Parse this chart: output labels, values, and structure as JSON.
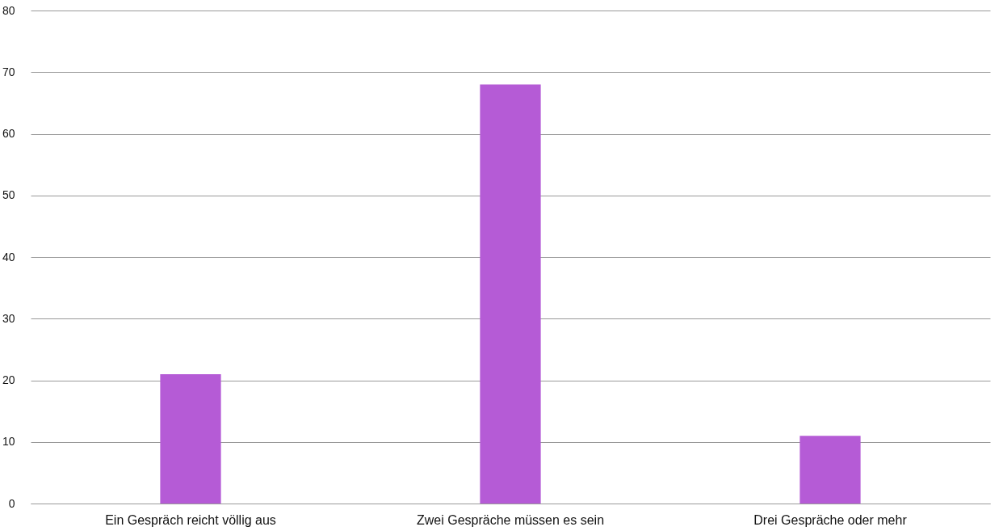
{
  "chart_data": {
    "type": "bar",
    "categories": [
      "Ein Gespräch reicht völlig aus",
      "Zwei Gespräche müssen es sein",
      "Drei Gespräche oder mehr"
    ],
    "values": [
      21,
      68,
      11
    ],
    "color": "#b55bd6",
    "ylim": [
      0,
      80
    ],
    "yticks": [
      0,
      10,
      20,
      30,
      40,
      50,
      60,
      70,
      80
    ],
    "grid": "y"
  }
}
